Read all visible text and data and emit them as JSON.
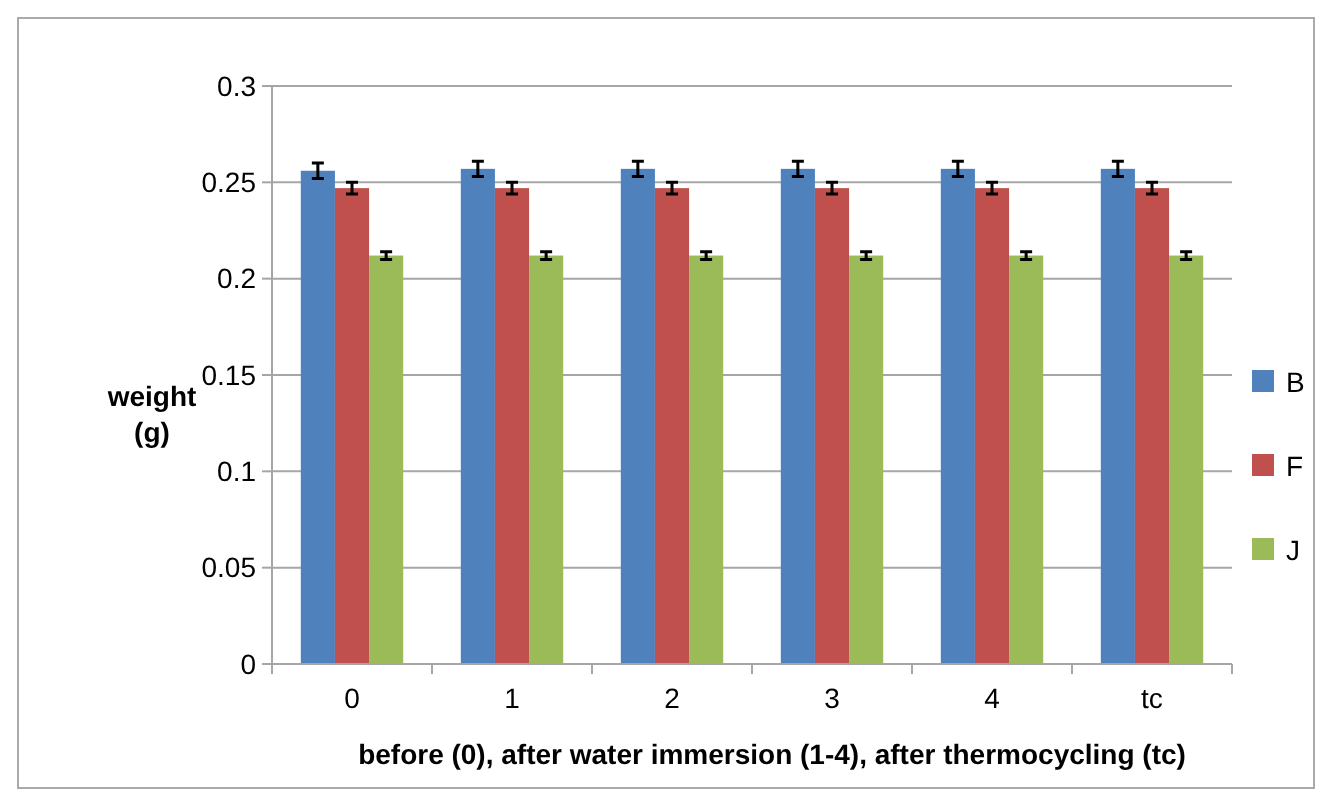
{
  "chart_data": {
    "type": "bar",
    "xlabel": "before (0), after water immersion (1-4), after thermocycling (tc)",
    "ylabel": "weight (g)",
    "categories": [
      "0",
      "1",
      "2",
      "3",
      "4",
      "tc"
    ],
    "series": [
      {
        "name": "B",
        "color": "#4f81bd",
        "values": [
          0.256,
          0.257,
          0.257,
          0.257,
          0.257,
          0.257
        ],
        "errors": [
          0.004,
          0.004,
          0.004,
          0.004,
          0.004,
          0.004
        ]
      },
      {
        "name": "F",
        "color": "#c0504d",
        "values": [
          0.247,
          0.247,
          0.247,
          0.247,
          0.247,
          0.247
        ],
        "errors": [
          0.003,
          0.003,
          0.003,
          0.003,
          0.003,
          0.003
        ]
      },
      {
        "name": "J",
        "color": "#9bbb59",
        "values": [
          0.212,
          0.212,
          0.212,
          0.212,
          0.212,
          0.212
        ],
        "errors": [
          0.002,
          0.002,
          0.002,
          0.002,
          0.002,
          0.002
        ]
      }
    ],
    "ylim": [
      0,
      0.3
    ],
    "yticks": [
      0,
      0.05,
      0.1,
      0.15,
      0.2,
      0.25,
      0.3
    ],
    "grid": "y",
    "legend": "right"
  }
}
